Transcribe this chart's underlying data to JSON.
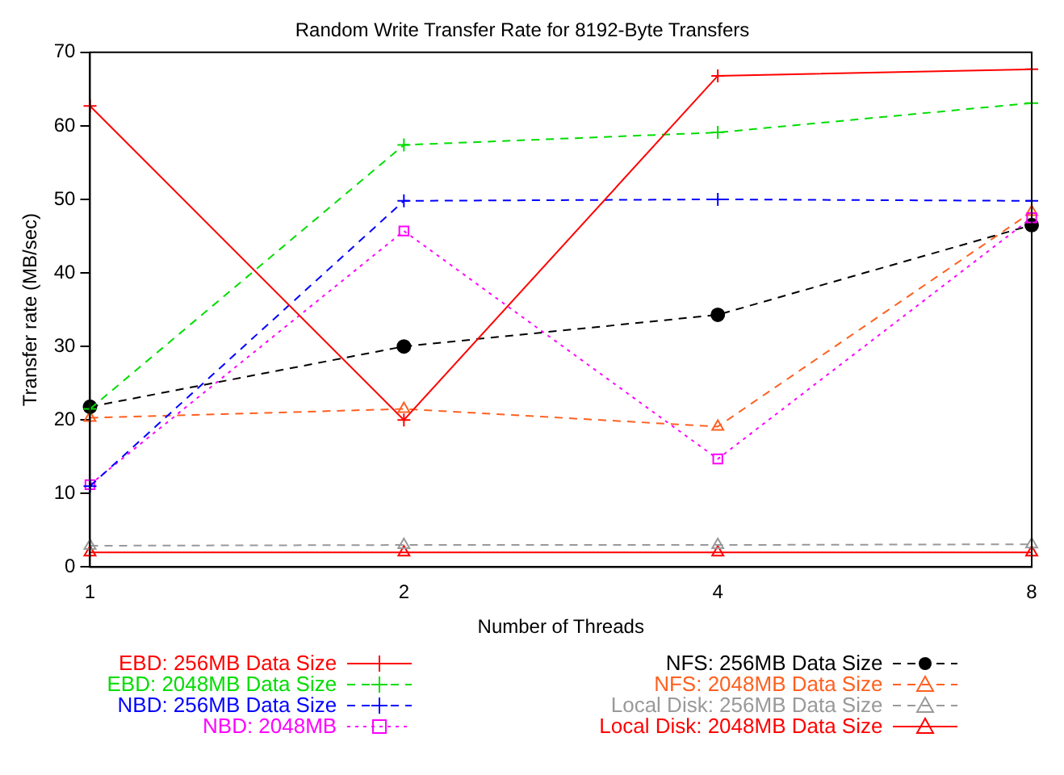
{
  "chart_data": {
    "type": "line",
    "title": "Random Write Transfer Rate for 8192-Byte Transfers",
    "xlabel": "Number of Threads",
    "ylabel": "Transfer rate (MB/sec)",
    "x": [
      1,
      2,
      4,
      8
    ],
    "log": "x",
    "xlim": [
      1,
      8
    ],
    "xticks": [
      1,
      2,
      4,
      8
    ],
    "ylim": [
      0,
      70
    ],
    "yticks": [
      0,
      10,
      20,
      30,
      40,
      50,
      60,
      70
    ],
    "grid": false,
    "legend": "bottom",
    "series": [
      {
        "name": "EBD: 256MB Data Size",
        "color": "#ff0000",
        "values": [
          62.7,
          20,
          66.8,
          67.7
        ],
        "marker": "cross",
        "line_style": "solid"
      },
      {
        "name": "EBD: 2048MB Data Size",
        "color": "#00dd00",
        "values": [
          21.5,
          57.4,
          59.1,
          63.1
        ],
        "marker": "cross",
        "line_style": "dashed"
      },
      {
        "name": "NBD: 256MB Data Size",
        "color": "#0000ff",
        "values": [
          11,
          49.8,
          50,
          49.8
        ],
        "marker": "cross",
        "line_style": "dashed"
      },
      {
        "name": "NBD: 2048MB",
        "color": "#ff00ff",
        "values": [
          11.2,
          45.7,
          14.7,
          47.5
        ],
        "marker": "square",
        "line_style": "dotted"
      },
      {
        "name": "NFS: 256MB Data Size",
        "color": "#000000",
        "values": [
          21.8,
          30,
          34.3,
          46.5
        ],
        "marker": "circle",
        "line_style": "dashed"
      },
      {
        "name": "NFS: 2048MB Data Size",
        "color": "#ff6020",
        "values": [
          20.3,
          21.5,
          19.1,
          48.3
        ],
        "marker": "triangle",
        "line_style": "dashed"
      },
      {
        "name": "Local Disk: 256MB Data Size",
        "color": "#999999",
        "values": [
          2.9,
          3,
          3,
          3.1
        ],
        "marker": "triangle",
        "line_style": "dashed"
      },
      {
        "name": "Local Disk: 2048MB Data Size",
        "color": "#ff0000",
        "values": [
          2,
          2,
          2,
          2
        ],
        "marker": "triangle",
        "line_style": "solid"
      }
    ]
  }
}
